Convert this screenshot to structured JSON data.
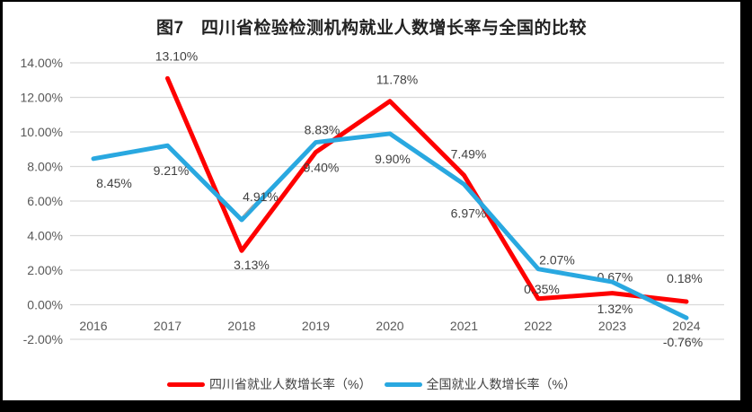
{
  "title": "图7　四川省检验检测机构就业人数增长率与全国的比较",
  "colors": {
    "frame_border": "#000000",
    "background": "#ffffff",
    "grid": "#d9d9d9",
    "axis_text": "#595959",
    "label_text": "#404040",
    "leader": "#a6a6a6",
    "sichuan_red": "#fe0000",
    "national_blue": "#29a8e0"
  },
  "chart_data": {
    "type": "line",
    "title": "图7　四川省检验检测机构就业人数增长率与全国的比较",
    "xlabel": "",
    "ylabel": "",
    "grid": true,
    "legend_position": "bottom",
    "ylim": [
      -2,
      14
    ],
    "x_categories": [
      "2016",
      "2017",
      "2018",
      "2019",
      "2020",
      "2021",
      "2022",
      "2023",
      "2024"
    ],
    "y_ticks": [
      "14.00%",
      "12.00%",
      "10.00%",
      "8.00%",
      "6.00%",
      "4.00%",
      "2.00%",
      "0.00%",
      "-2.00%"
    ],
    "y_tick_values": [
      14,
      12,
      10,
      8,
      6,
      4,
      2,
      0,
      -2
    ],
    "series": [
      {
        "name": "四川省就业人数增长率（%）",
        "color": "#fe0000",
        "points": [
          {
            "x": "2017",
            "y": 13.1,
            "label": "13.10%",
            "dx": 10,
            "dy": -25
          },
          {
            "x": "2018",
            "y": 3.13,
            "label": "3.13%",
            "dx": 11,
            "dy": 16
          },
          {
            "x": "2019",
            "y": 8.83,
            "label": "8.83%",
            "dx": 7,
            "dy": -25
          },
          {
            "x": "2020",
            "y": 11.78,
            "label": "11.78%",
            "dx": 8,
            "dy": -24
          },
          {
            "x": "2021",
            "y": 7.49,
            "label": "7.49%",
            "dx": 5,
            "dy": -24
          },
          {
            "x": "2022",
            "y": 0.35,
            "label": "0.35%",
            "dx": 4,
            "dy": -11
          },
          {
            "x": "2023",
            "y": 0.67,
            "label": "0.67%",
            "dx": 3,
            "dy": -18
          },
          {
            "x": "2024",
            "y": 0.18,
            "label": "0.18%",
            "dx": -2,
            "dy": -26
          }
        ]
      },
      {
        "name": "全国就业人数增长率（%）",
        "color": "#29a8e0",
        "points": [
          {
            "x": "2016",
            "y": 8.45,
            "label": "8.45%",
            "dx": 23,
            "dy": 27
          },
          {
            "x": "2017",
            "y": 9.21,
            "label": "9.21%",
            "dx": 4,
            "dy": 28
          },
          {
            "x": "2018",
            "y": 4.91,
            "label": "4.91%",
            "dx": 21,
            "dy": -26,
            "leader": true
          },
          {
            "x": "2019",
            "y": 9.4,
            "label": "9.40%",
            "dx": 6,
            "dy": 28
          },
          {
            "x": "2020",
            "y": 9.9,
            "label": "9.90%",
            "dx": 3,
            "dy": 28
          },
          {
            "x": "2021",
            "y": 6.97,
            "label": "6.97%",
            "dx": 5,
            "dy": 32
          },
          {
            "x": "2022",
            "y": 2.07,
            "label": "2.07%",
            "dx": 21,
            "dy": -10
          },
          {
            "x": "2023",
            "y": 1.32,
            "label": "1.32%",
            "dx": 3,
            "dy": 30
          },
          {
            "x": "2024",
            "y": -0.76,
            "label": "-0.76%",
            "dx": -4,
            "dy": 27
          }
        ]
      }
    ]
  }
}
